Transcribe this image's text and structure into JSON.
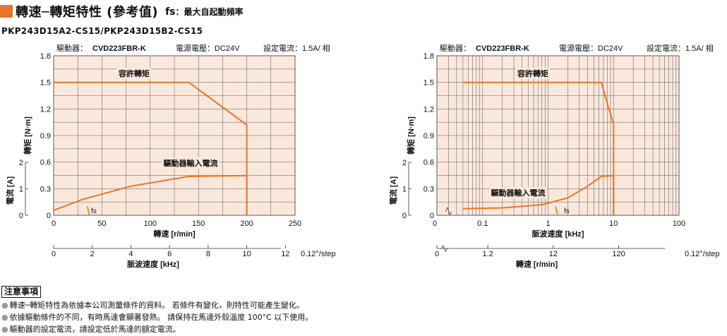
{
  "header": {
    "title": "轉速─轉矩特性 (參考值)",
    "fs_label": "fs",
    "fs_desc": "：最大自起動頻率",
    "model": "PKP243D15A2-CS15/PKP243D15B2-CS15"
  },
  "colors": {
    "accent": "#e8742a",
    "plot_bg": "#fbe8dc",
    "grid": "#555555"
  },
  "chart_data": [
    {
      "type": "line",
      "info": {
        "driver_label": "驅動器：",
        "driver_model": "CVD223FBR-K",
        "voltage": "電源電壓：DC24V",
        "current": "設定電流：1.5A/ 相"
      },
      "x_axis": {
        "label": "轉速 [r/min]",
        "ticks": [
          "0",
          "50",
          "100",
          "150",
          "200",
          "250"
        ],
        "range": [
          0,
          250
        ],
        "scale": "linear"
      },
      "x2_axis": {
        "label": "脈波速度 [kHz]",
        "ticks": [
          "0",
          "2",
          "4",
          "6",
          "8",
          "10",
          "12"
        ],
        "step_label": "0.12°/step"
      },
      "y_axis": {
        "label": "轉矩 [N·m]",
        "ticks": [
          "0",
          "0.3",
          "0.6",
          "0.9",
          "1.2",
          "1.5",
          "1.8"
        ],
        "range": [
          0,
          1.8
        ]
      },
      "y2_axis": {
        "label": "電流 [A]",
        "ticks": [
          "0",
          "1",
          "2"
        ],
        "range": [
          0,
          2
        ]
      },
      "series": [
        {
          "name": "容許轉矩",
          "axis": "torque",
          "x": [
            0,
            140,
            200,
            200,
            200
          ],
          "y": [
            1.5,
            1.5,
            1.02,
            0.5,
            0
          ]
        },
        {
          "name": "驅動器輸入電流",
          "axis": "current",
          "x": [
            0,
            30,
            80,
            140,
            200,
            200
          ],
          "y": [
            0.19,
            0.6,
            1.1,
            1.47,
            1.5,
            0
          ]
        },
        {
          "name": "fs",
          "axis": "torque",
          "x": [
            35,
            37
          ],
          "y": [
            0.1,
            0
          ]
        }
      ]
    },
    {
      "type": "line",
      "info": {
        "driver_label": "驅動器：",
        "driver_model": "CVD223FBR-K",
        "voltage": "電源電壓：DC24V",
        "current": "設定電流：1.5A/ 相"
      },
      "x_axis": {
        "label": "脈波速度 [kHz]",
        "ticks": [
          "0.1",
          "1",
          "10",
          "100"
        ],
        "range": [
          0.02,
          100
        ],
        "scale": "log"
      },
      "x2_axis": {
        "label": "轉速 [r/min]",
        "ticks": [
          "0",
          "1.2",
          "12",
          "120"
        ],
        "step_label": "0.12°/step"
      },
      "y_axis": {
        "label": "轉矩 [N·m]",
        "ticks": [
          "0",
          "0.3",
          "0.6",
          "0.9",
          "1.2",
          "1.5",
          "1.8"
        ],
        "range": [
          0,
          1.8
        ]
      },
      "y2_axis": {
        "label": "電流 [A]",
        "ticks": [
          "0",
          "1",
          "2"
        ],
        "range": [
          0,
          2
        ]
      },
      "series": [
        {
          "name": "容許轉矩",
          "axis": "torque",
          "x": [
            0.05,
            6.5,
            10,
            10,
            10
          ],
          "y": [
            1.5,
            1.5,
            1.02,
            0.5,
            0
          ]
        },
        {
          "name": "驅動器輸入電流",
          "axis": "current",
          "x": [
            0.05,
            0.2,
            0.8,
            2,
            4,
            6.5,
            10,
            10
          ],
          "y": [
            0.25,
            0.28,
            0.4,
            0.66,
            1.1,
            1.47,
            1.5,
            0
          ]
        },
        {
          "name": "fs",
          "axis": "torque",
          "x": [
            1.3,
            1.4
          ],
          "y": [
            0.1,
            0
          ]
        }
      ]
    }
  ],
  "notes": {
    "title": "注意事項",
    "items": [
      "轉速─轉矩特性為依據本公司測量條件的資料。 若條件有變化，則特性可能產生變化。",
      "依據驅動條件的不同，有時馬達會顯著發熱。 請保持在馬達外殼溫度 100°C 以下使用。",
      "驅動器的設定電流，請設定低於馬達的額定電流。"
    ]
  }
}
